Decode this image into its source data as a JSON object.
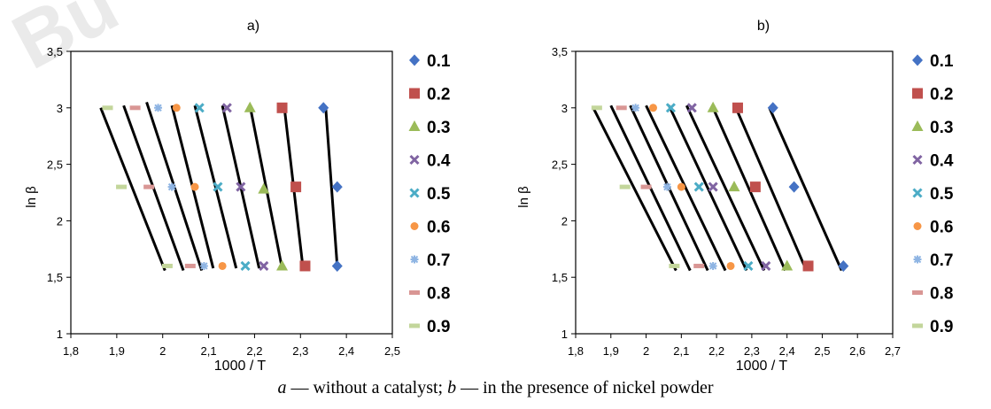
{
  "caption": {
    "a_letter": "a",
    "a_text": " — without a catalyst; ",
    "b_letter": "b",
    "b_text": " — in the presence of nickel powder"
  },
  "watermark": "Bu",
  "chart_data": [
    {
      "type": "scatter",
      "title": "a)",
      "xlabel": "1000 / T",
      "ylabel": "ln β",
      "xlim": [
        1.8,
        2.5
      ],
      "ylim": [
        1,
        3.5
      ],
      "xticks": [
        "1,8",
        "1,9",
        "2",
        "2,1",
        "2,2",
        "2,3",
        "2,4",
        "2,5"
      ],
      "yticks": [
        "1",
        "1,5",
        "2",
        "2,5",
        "3",
        "3,5"
      ],
      "legend_position": "right",
      "series": [
        {
          "name": "0.1",
          "color": "#4472C4",
          "marker": "diamond",
          "x": [
            2.35,
            2.38,
            2.38
          ],
          "y": [
            3.0,
            2.3,
            1.6
          ],
          "line": [
            [
              2.355,
              3.0
            ],
            [
              2.38,
              1.6
            ]
          ]
        },
        {
          "name": "0.2",
          "color": "#C0504D",
          "marker": "square",
          "x": [
            2.26,
            2.29,
            2.31
          ],
          "y": [
            3.0,
            2.3,
            1.6
          ],
          "line": [
            [
              2.265,
              3.0
            ],
            [
              2.305,
              1.6
            ]
          ]
        },
        {
          "name": "0.3",
          "color": "#9BBB59",
          "marker": "triangle",
          "x": [
            2.19,
            2.22,
            2.26
          ],
          "y": [
            3.0,
            2.28,
            1.6
          ],
          "line": [
            [
              2.19,
              3.02
            ],
            [
              2.26,
              1.58
            ]
          ]
        },
        {
          "name": "0.4",
          "color": "#8064A2",
          "marker": "x",
          "x": [
            2.14,
            2.17,
            2.22
          ],
          "y": [
            3.0,
            2.3,
            1.6
          ],
          "line": [
            [
              2.13,
              3.02
            ],
            [
              2.21,
              1.58
            ]
          ]
        },
        {
          "name": "0.5",
          "color": "#4BACC6",
          "marker": "x",
          "x": [
            2.08,
            2.12,
            2.18
          ],
          "y": [
            3.0,
            2.3,
            1.6
          ],
          "line": [
            [
              2.07,
              3.02
            ],
            [
              2.16,
              1.58
            ]
          ]
        },
        {
          "name": "0.6",
          "color": "#F79646",
          "marker": "circle",
          "x": [
            2.03,
            2.07,
            2.13
          ],
          "y": [
            3.0,
            2.3,
            1.6
          ],
          "line": [
            [
              2.02,
              3.02
            ],
            [
              2.11,
              1.58
            ]
          ]
        },
        {
          "name": "0.7",
          "color": "#8EB4E3",
          "marker": "star",
          "x": [
            1.99,
            2.02,
            2.09
          ],
          "y": [
            3.0,
            2.3,
            1.6
          ],
          "line": [
            [
              1.965,
              3.05
            ],
            [
              2.085,
              1.56
            ]
          ]
        },
        {
          "name": "0.8",
          "color": "#D99694",
          "marker": "dash",
          "x": [
            1.94,
            1.97,
            2.06
          ],
          "y": [
            3.0,
            2.3,
            1.6
          ],
          "line": [
            [
              1.915,
              3.02
            ],
            [
              2.045,
              1.56
            ]
          ]
        },
        {
          "name": "0.9",
          "color": "#C3D69B",
          "marker": "dash",
          "x": [
            1.88,
            1.91,
            2.01
          ],
          "y": [
            3.0,
            2.3,
            1.6
          ],
          "line": [
            [
              1.865,
              3.0
            ],
            [
              2.005,
              1.56
            ]
          ]
        }
      ]
    },
    {
      "type": "scatter",
      "title": "b)",
      "xlabel": "1000 / T",
      "ylabel": "ln β",
      "xlim": [
        1.8,
        2.7
      ],
      "ylim": [
        1,
        3.5
      ],
      "xticks": [
        "1,8",
        "1,9",
        "2",
        "2,1",
        "2,2",
        "2,3",
        "2,4",
        "2,5",
        "2,6",
        "2,7"
      ],
      "yticks": [
        "1",
        "1,5",
        "2",
        "2,5",
        "3",
        "3,5"
      ],
      "legend_position": "right",
      "series": [
        {
          "name": "0.1",
          "color": "#4472C4",
          "marker": "diamond",
          "x": [
            2.36,
            2.42,
            2.56
          ],
          "y": [
            3.0,
            2.3,
            1.6
          ],
          "line": [
            [
              2.35,
              3.0
            ],
            [
              2.555,
              1.56
            ]
          ]
        },
        {
          "name": "0.2",
          "color": "#C0504D",
          "marker": "square",
          "x": [
            2.26,
            2.31,
            2.46
          ],
          "y": [
            3.0,
            2.3,
            1.6
          ],
          "line": [
            [
              2.255,
              3.0
            ],
            [
              2.455,
              1.56
            ]
          ]
        },
        {
          "name": "0.3",
          "color": "#9BBB59",
          "marker": "triangle",
          "x": [
            2.19,
            2.25,
            2.4
          ],
          "y": [
            3.0,
            2.3,
            1.6
          ],
          "line": [
            [
              2.19,
              3.0
            ],
            [
              2.395,
              1.56
            ]
          ]
        },
        {
          "name": "0.4",
          "color": "#8064A2",
          "marker": "x",
          "x": [
            2.13,
            2.19,
            2.34
          ],
          "y": [
            3.0,
            2.3,
            1.6
          ],
          "line": [
            [
              2.115,
              3.02
            ],
            [
              2.335,
              1.56
            ]
          ]
        },
        {
          "name": "0.5",
          "color": "#4BACC6",
          "marker": "x",
          "x": [
            2.07,
            2.15,
            2.29
          ],
          "y": [
            3.0,
            2.3,
            1.6
          ],
          "line": [
            [
              2.065,
              3.02
            ],
            [
              2.285,
              1.56
            ]
          ]
        },
        {
          "name": "0.6",
          "color": "#F79646",
          "marker": "circle",
          "x": [
            2.02,
            2.1,
            2.24
          ],
          "y": [
            3.0,
            2.3,
            1.6
          ],
          "line": [
            [
              2.0,
              3.02
            ],
            [
              2.225,
              1.56
            ]
          ]
        },
        {
          "name": "0.7",
          "color": "#8EB4E3",
          "marker": "star",
          "x": [
            1.97,
            2.06,
            2.19
          ],
          "y": [
            3.0,
            2.3,
            1.6
          ],
          "line": [
            [
              1.955,
              3.02
            ],
            [
              2.175,
              1.56
            ]
          ]
        },
        {
          "name": "0.8",
          "color": "#D99694",
          "marker": "dash",
          "x": [
            1.93,
            2.0,
            2.15
          ],
          "y": [
            3.0,
            2.3,
            1.6
          ],
          "line": [
            [
              1.9,
              3.02
            ],
            [
              2.125,
              1.56
            ]
          ]
        },
        {
          "name": "0.9",
          "color": "#C3D69B",
          "marker": "dash",
          "x": [
            1.86,
            1.94,
            2.08
          ],
          "y": [
            3.0,
            2.3,
            1.6
          ],
          "line": [
            [
              1.85,
              3.0
            ],
            [
              2.085,
              1.56
            ]
          ]
        }
      ]
    }
  ]
}
